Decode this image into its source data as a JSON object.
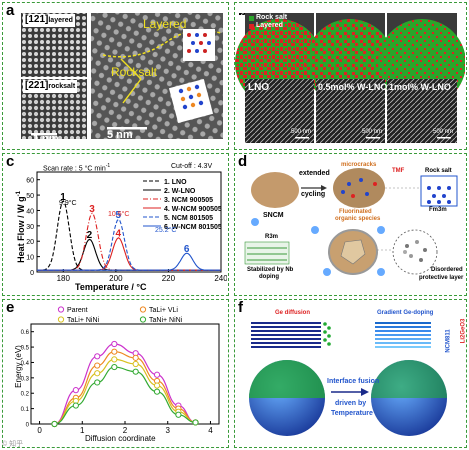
{
  "panels": {
    "a": {
      "label": "a",
      "tl_tag_main": "[121]",
      "tl_tag_sub": "layered",
      "bl_tag_main": "[221]",
      "bl_tag_sub": "rocksalt",
      "scalebar_left": "1 nm",
      "layered_text": "Layered",
      "rocksalt_text": "Rocksalt",
      "scalebar_right": "5 nm"
    },
    "b": {
      "label": "b",
      "legend_rocksalt": "Rock salt",
      "legend_layered": "Layered",
      "col1": "LNO",
      "col2": "0.5mol% W-LNO",
      "col3": "1mol% W-LNO",
      "scale1": "500 nm",
      "scale2": "500 nm",
      "scale3": "500 nm",
      "colors": {
        "rocksalt": "#2aa52a",
        "layered": "#dd2222"
      }
    },
    "c": {
      "label": "c",
      "scan_rate": "Scan rate : 5 °C min",
      "cutoff": "Cut-off : 4.3V",
      "ylabel": "Heat Flow  /  W g",
      "xlabel": "Temperature   /   °C",
      "ann_99": "9.9°C",
      "ann_105": "10.5°C",
      "ann_252": "25.2°C",
      "chart_data": {
        "type": "line",
        "xlabel": "Temperature / °C",
        "ylabel": "Heat Flow / W g-1",
        "xlim": [
          170,
          240
        ],
        "ylim": [
          0,
          65
        ],
        "xticks": [
          180,
          200,
          220,
          240
        ],
        "yticks": [
          0,
          10,
          20,
          30,
          40,
          50,
          60
        ],
        "legend_position": "top-right",
        "series": [
          {
            "name": "1. LNO",
            "peak_x": 180,
            "peak_y": 45,
            "color": "#000000",
            "dash": "dashed"
          },
          {
            "name": "2. W-LNO",
            "peak_x": 190,
            "peak_y": 20,
            "color": "#000000",
            "dash": "solid"
          },
          {
            "name": "3. NCM 900505",
            "peak_x": 191,
            "peak_y": 37,
            "color": "#dd2222",
            "dash": "dashdot"
          },
          {
            "name": "4. W-NCM 900505",
            "peak_x": 201,
            "peak_y": 21,
            "color": "#dd2222",
            "dash": "solid"
          },
          {
            "name": "5. NCM 801505",
            "peak_x": 201,
            "peak_y": 33,
            "color": "#2255cc",
            "dash": "dashed"
          },
          {
            "name": "6. W-NCM 801505",
            "peak_x": 227,
            "peak_y": 11,
            "color": "#2255cc",
            "dash": "solid"
          }
        ],
        "peak_labels": [
          "1",
          "2",
          "3",
          "4",
          "5",
          "6"
        ]
      }
    },
    "d": {
      "label": "d",
      "sncm": "SNCM",
      "extended": "extended",
      "cycling": "cycling",
      "microcracks": "microcracks",
      "tmf": "TMF",
      "fluorinated1": "Fluorinated",
      "fluorinated2": "organic species",
      "rocksalt": "Rock salt",
      "fm3m": "Fm3m",
      "r3m": "R3m",
      "stabilized": "Stabilized by Nb",
      "doping": "doping",
      "disordered1": "Disordered",
      "disordered2": "protective layer"
    },
    "e": {
      "label": "e",
      "ylabel": "Energy (eV)",
      "xlabel": "Diffusion coordinate",
      "chart_data": {
        "type": "line",
        "xlabel": "Diffusion coordinate",
        "ylabel": "Energy (eV)",
        "xlim": [
          -0.2,
          4.2
        ],
        "ylim": [
          0,
          0.65
        ],
        "xticks": [
          0,
          1,
          2,
          3,
          4
        ],
        "yticks": [
          0,
          0.1,
          0.2,
          0.3,
          0.4,
          0.5,
          0.6
        ],
        "legend_position": "top",
        "series": [
          {
            "name": "Parent",
            "color": "#cc33cc",
            "x": [
              0.35,
              0.85,
              1.35,
              1.75,
              2.25,
              2.75,
              3.25,
              3.65
            ],
            "y": [
              0.0,
              0.22,
              0.44,
              0.52,
              0.46,
              0.32,
              0.12,
              0.01
            ]
          },
          {
            "name": "TaLi+ VLi",
            "color": "#ee8822",
            "x": [
              0.35,
              0.85,
              1.35,
              1.75,
              2.25,
              2.75,
              3.25,
              3.65
            ],
            "y": [
              0.0,
              0.17,
              0.38,
              0.47,
              0.43,
              0.28,
              0.1,
              0.01
            ]
          },
          {
            "name": "TaLi+ NiNi",
            "color": "#d8c020",
            "x": [
              0.35,
              0.85,
              1.35,
              1.75,
              2.25,
              2.75,
              3.25,
              3.65
            ],
            "y": [
              0.0,
              0.15,
              0.33,
              0.42,
              0.39,
              0.25,
              0.08,
              0.01
            ]
          },
          {
            "name": "TaNi+ NiNi",
            "color": "#33aa33",
            "x": [
              0.35,
              0.85,
              1.35,
              1.75,
              2.25,
              2.75,
              3.25,
              3.65
            ],
            "y": [
              0.0,
              0.12,
              0.27,
              0.37,
              0.34,
              0.21,
              0.06,
              0.01
            ]
          }
        ]
      }
    },
    "f": {
      "label": "f",
      "ge_diffusion": "Ge diffusion",
      "gradient": "Gradient Ge-doping",
      "interface": "Interface fusion",
      "driven_by": "driven by",
      "temperature": "Temperature",
      "ncm811": "NCM811",
      "li2geo3": "Li2GeO3"
    }
  },
  "watermark": "© 知乎"
}
